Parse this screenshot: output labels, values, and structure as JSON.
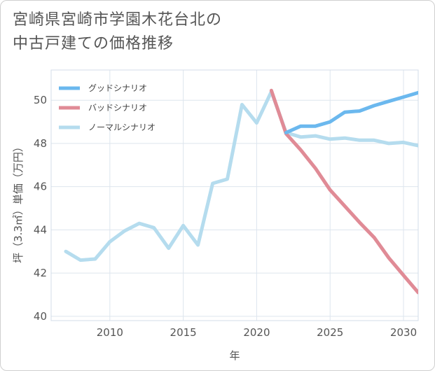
{
  "title_lines": [
    "宮崎県宮崎市学園木花台北の",
    "中古戸建ての価格推移"
  ],
  "chart_data": {
    "type": "line",
    "xlabel": "年",
    "ylabel": "坪（3.3㎡）単価（万円）",
    "xlim": [
      2006,
      2031
    ],
    "ylim": [
      39.8,
      51.4
    ],
    "xticks": [
      2010,
      2015,
      2020,
      2025,
      2030
    ],
    "yticks": [
      40,
      42,
      44,
      46,
      48,
      50
    ],
    "grid": true,
    "legend_position": "top-left",
    "series": [
      {
        "name": "ノーマルシナリオ",
        "color": "#b5dcee",
        "x": [
          2007,
          2008,
          2009,
          2010,
          2011,
          2012,
          2013,
          2014,
          2015,
          2016,
          2017,
          2018,
          2019,
          2020,
          2021,
          2022,
          2023,
          2024,
          2025,
          2026,
          2027,
          2028,
          2029,
          2030,
          2031
        ],
        "y": [
          43.0,
          42.6,
          42.65,
          43.45,
          43.95,
          44.3,
          44.1,
          43.15,
          44.2,
          43.3,
          46.15,
          46.35,
          49.8,
          48.95,
          50.4,
          48.5,
          48.3,
          48.35,
          48.2,
          48.25,
          48.15,
          48.15,
          48.0,
          48.05,
          47.9
        ]
      },
      {
        "name": "バッドシナリオ",
        "color": "#e08b96",
        "x": [
          2021,
          2022,
          2023,
          2024,
          2025,
          2026,
          2027,
          2028,
          2029,
          2030,
          2031
        ],
        "y": [
          50.45,
          48.45,
          47.7,
          46.85,
          45.85,
          45.1,
          44.35,
          43.65,
          42.7,
          41.9,
          41.1
        ]
      },
      {
        "name": "グッドシナリオ",
        "color": "#6bb8ee",
        "x": [
          2022,
          2023,
          2024,
          2025,
          2026,
          2027,
          2028,
          2029,
          2030,
          2031
        ],
        "y": [
          48.5,
          48.8,
          48.8,
          49.0,
          49.45,
          49.5,
          49.75,
          49.95,
          50.15,
          50.35
        ]
      }
    ],
    "legend": [
      {
        "name": "グッドシナリオ",
        "color": "#6bb8ee"
      },
      {
        "name": "バッドシナリオ",
        "color": "#e08b96"
      },
      {
        "name": "ノーマルシナリオ",
        "color": "#b5dcee"
      }
    ]
  }
}
